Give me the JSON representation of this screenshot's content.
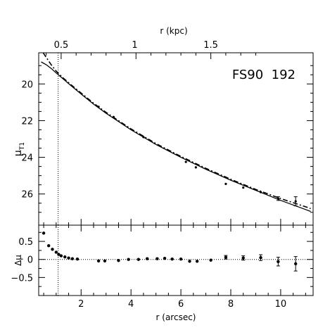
{
  "chart_data": [
    {
      "type": "line",
      "panel": "upper",
      "annotation": "FS90  192",
      "xlabel": "r (arcsec)",
      "top_xlabel": "r (kpc)",
      "ylabel_main": "μ",
      "ylabel_sub": "T1",
      "xlim": [
        0.3,
        11.3
      ],
      "ylim": [
        27.7,
        18.3
      ],
      "y_inverted": true,
      "yticks": [
        20,
        22,
        24,
        26
      ],
      "ytick_labels": [
        "20",
        "22",
        "24",
        "26"
      ],
      "top_ticks": [
        0.5,
        1,
        1.5
      ],
      "top_tick_labels": [
        "0.5",
        "1",
        "1.5"
      ],
      "top_tick_positions_arcsec": [
        1.2,
        4.15,
        7.2
      ],
      "vertical_line_x": 1.08,
      "series": [
        {
          "style": "solid",
          "x": [
            0.4,
            0.6,
            0.8,
            1.0,
            1.3,
            1.6,
            2.0,
            2.5,
            3.0,
            3.5,
            4.0,
            5.0,
            6.0,
            7.0,
            8.0,
            9.0,
            10.0,
            10.5,
            11.0,
            11.2
          ],
          "y": [
            18.8,
            18.95,
            19.15,
            19.4,
            19.75,
            20.1,
            20.55,
            21.1,
            21.6,
            22.05,
            22.5,
            23.3,
            24.0,
            24.65,
            25.25,
            25.8,
            26.35,
            26.6,
            26.85,
            26.95
          ]
        },
        {
          "style": "dashdot",
          "x": [
            0.48,
            0.6,
            0.8,
            1.0,
            1.3,
            1.6,
            2.0,
            2.5,
            3.0,
            4.0,
            5.0,
            6.0,
            7.0,
            8.0,
            9.0,
            10.0,
            11.0,
            11.2
          ],
          "y": [
            18.3,
            18.55,
            18.95,
            19.3,
            19.7,
            20.05,
            20.5,
            21.05,
            21.55,
            22.45,
            23.25,
            23.95,
            24.6,
            25.2,
            25.75,
            26.25,
            26.7,
            26.8
          ]
        }
      ],
      "observed_points": {
        "x": [
          2.7,
          3.3,
          4.5,
          6.2,
          6.6,
          7.8,
          8.5,
          9.2,
          9.9,
          10.6
        ],
        "y": [
          21.25,
          21.8,
          22.9,
          24.25,
          24.55,
          25.45,
          25.65,
          25.9,
          26.25,
          26.4
        ],
        "err": [
          0,
          0,
          0,
          0,
          0,
          0,
          0,
          0,
          0.1,
          0.25
        ]
      }
    },
    {
      "type": "scatter",
      "panel": "lower",
      "xlabel": "r (arcsec)",
      "ylabel": "Δμ",
      "xlim": [
        0.3,
        11.3
      ],
      "ylim": [
        -1.0,
        0.95
      ],
      "yticks": [
        0.5,
        0,
        -0.5
      ],
      "ytick_labels": [
        "0.5",
        "0",
        "−0.5"
      ],
      "xticks": [
        2,
        4,
        6,
        8,
        10
      ],
      "xtick_labels": [
        "2",
        "4",
        "6",
        "8",
        "10"
      ],
      "zero_line": true,
      "vertical_line_x": 1.08,
      "series": [
        {
          "x": [
            0.5,
            0.7,
            0.85,
            1.0,
            1.1,
            1.2,
            1.35,
            1.5,
            1.65,
            1.85,
            2.7,
            2.95,
            3.5,
            3.9,
            4.3,
            4.65,
            5.05,
            5.35,
            5.65,
            6.0,
            6.35,
            6.65,
            7.2,
            7.8,
            8.5,
            9.2,
            9.9,
            10.6
          ],
          "y": [
            0.73,
            0.38,
            0.28,
            0.2,
            0.14,
            0.1,
            0.07,
            0.04,
            0.02,
            0.01,
            -0.04,
            -0.04,
            -0.03,
            0.0,
            0.0,
            0.02,
            0.02,
            0.03,
            0.01,
            0.01,
            -0.05,
            -0.05,
            -0.02,
            0.06,
            0.04,
            0.05,
            -0.06,
            -0.12
          ],
          "err": [
            0,
            0,
            0,
            0,
            0,
            0,
            0,
            0,
            0,
            0,
            0,
            0,
            0,
            0,
            0,
            0,
            0,
            0,
            0,
            0,
            0,
            0,
            0,
            0.05,
            0.06,
            0.08,
            0.12,
            0.2
          ]
        }
      ]
    }
  ]
}
